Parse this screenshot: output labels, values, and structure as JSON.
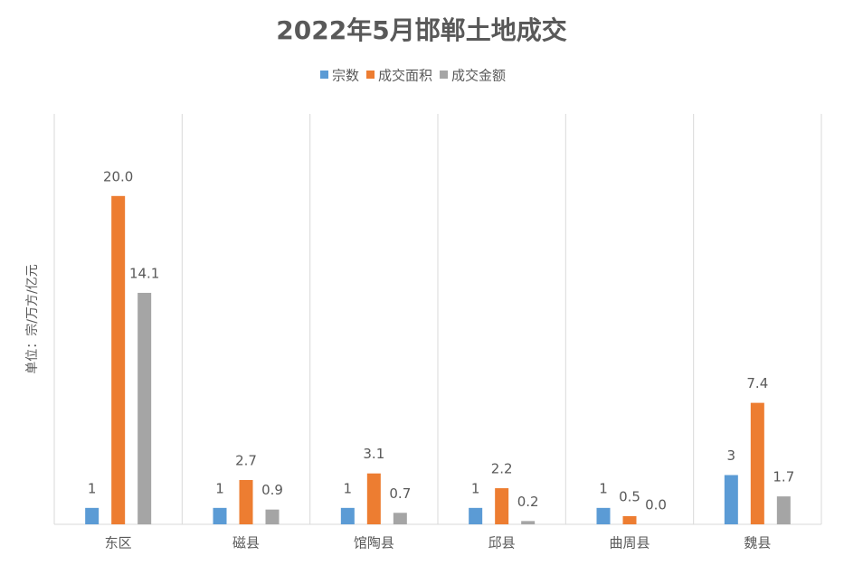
{
  "chart_data": {
    "type": "bar",
    "title": "2022年5月邯郸土地成交",
    "y_label": "单位：宗/万方/亿元",
    "categories": [
      "东区",
      "磁县",
      "馆陶县",
      "邱县",
      "曲周县",
      "魏县"
    ],
    "series": [
      {
        "name": "宗数",
        "color": "#5b9bd5",
        "values": [
          1,
          1,
          1,
          1,
          1,
          3
        ]
      },
      {
        "name": "成交面积",
        "color": "#ed7d31",
        "values": [
          20,
          2.7,
          3.1,
          2.2,
          0.5,
          7.4
        ],
        "value_labels": [
          "20.0",
          "2.7",
          "3.1",
          "2.2",
          "0.5",
          "7.4"
        ]
      },
      {
        "name": "成交金额",
        "color": "#a5a5a5",
        "values": [
          14.1,
          0.9,
          0.7,
          0.2,
          0,
          1.7
        ],
        "value_labels": [
          "14.1",
          "0.9",
          "0.7",
          "0.2",
          "0.0",
          "1.7"
        ]
      }
    ],
    "ylim": [
      0,
      25
    ],
    "legend": "top"
  }
}
